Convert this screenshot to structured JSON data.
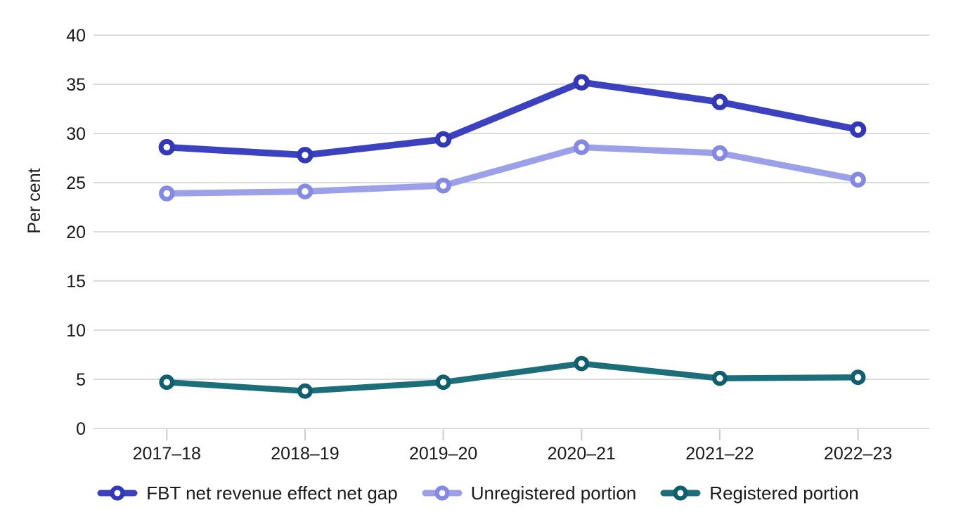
{
  "chart_data": {
    "type": "line",
    "title": "",
    "xlabel": "",
    "ylabel": "Per cent",
    "ylim": [
      0,
      40
    ],
    "yticks": [
      0,
      5,
      10,
      15,
      20,
      25,
      30,
      35,
      40
    ],
    "grid": "horizontal",
    "legend_position": "bottom",
    "categories": [
      "2017–18",
      "2018–19",
      "2019–20",
      "2020–21",
      "2021–22",
      "2022–23"
    ],
    "series": [
      {
        "name": "FBT net revenue effect net gap",
        "values": [
          28.6,
          27.8,
          29.4,
          35.2,
          33.2,
          30.4
        ],
        "color": "#3B41BF",
        "marker_color": "#3338B4",
        "marker": "open-circle"
      },
      {
        "name": "Unregistered portion",
        "values": [
          23.9,
          24.1,
          24.7,
          28.6,
          28.0,
          25.3
        ],
        "color": "#9BA0E8",
        "marker_color": "#8489E2",
        "marker": "open-circle"
      },
      {
        "name": "Registered portion",
        "values": [
          4.7,
          3.8,
          4.7,
          6.6,
          5.1,
          5.2
        ],
        "color": "#1B6E7A",
        "marker_color": "#115F6C",
        "marker": "open-circle"
      }
    ],
    "colors": {
      "grid": "#DBDBDB",
      "axis_tick": "#CCCCCC",
      "text": "#1A1A1A",
      "background": "#FFFFFF"
    }
  }
}
